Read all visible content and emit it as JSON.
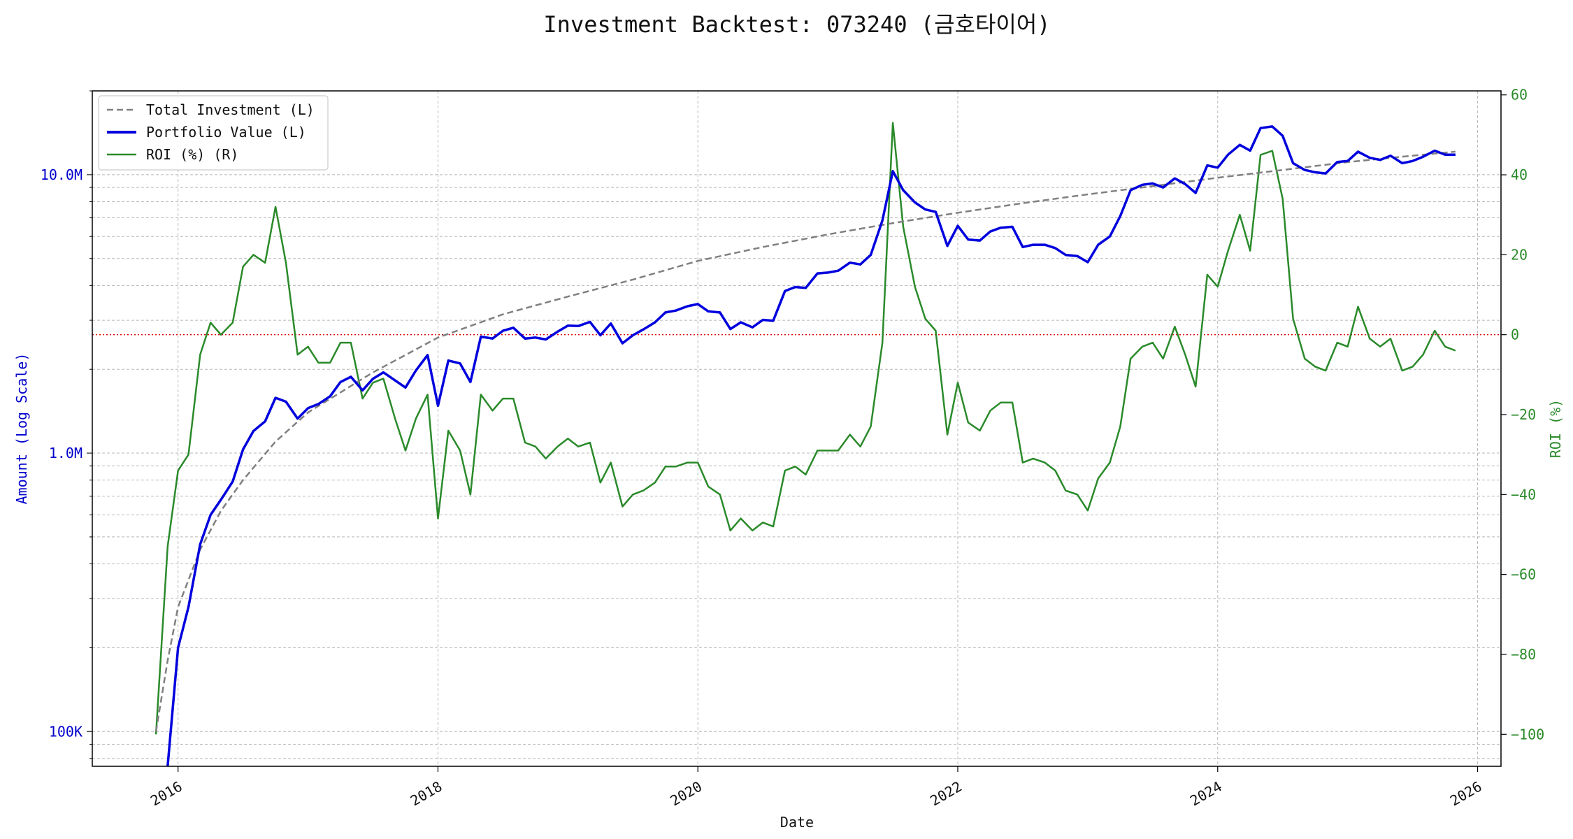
{
  "chart_data": {
    "type": "line",
    "title": "Investment Backtest: 073240 (금호타이어)",
    "xlabel": "Date",
    "ylabel_left": "Amount (Log Scale)",
    "ylabel_right": "ROI (%)",
    "left_axis": {
      "scale": "log",
      "range": [
        75000,
        20000000
      ],
      "tick_values": [
        100000,
        1000000,
        10000000
      ],
      "tick_labels": [
        "100K",
        "1.0M",
        "10.0M"
      ]
    },
    "right_axis": {
      "scale": "linear",
      "range": [
        -108,
        61
      ],
      "ticks": [
        -100,
        -80,
        -60,
        -40,
        -20,
        0,
        20,
        40,
        60
      ]
    },
    "x_axis": {
      "range": [
        2015.34,
        2026.18
      ],
      "ticks": [
        2016,
        2018,
        2020,
        2022,
        2024,
        2026
      ],
      "tick_labels": [
        "2016",
        "2018",
        "2020",
        "2022",
        "2024",
        "2026"
      ]
    },
    "grid": true,
    "legend_position": "top-left",
    "colors": {
      "total_investment": "#808080",
      "portfolio_value": "#0000dd",
      "roi": "#2a8a2a",
      "zero_line": "#dd0000",
      "left_axis_text": "#0000cc",
      "right_axis_text": "#2a8a2a"
    },
    "series": [
      {
        "name": "Total Investment (L)",
        "axis": "left",
        "style": "dashed",
        "x": [
          2015.83,
          2015.92,
          2016.0,
          2016.17,
          2016.33,
          2016.5,
          2016.75,
          2017.0,
          2017.5,
          2018.0,
          2018.5,
          2019.0,
          2019.5,
          2020.0,
          2020.5,
          2021.0,
          2021.5,
          2022.0,
          2022.5,
          2023.0,
          2023.5,
          2024.0,
          2024.5,
          2025.0,
          2025.5,
          2025.83
        ],
        "values": [
          100000,
          180000,
          280000,
          450000,
          620000,
          800000,
          1100000,
          1400000,
          1950000,
          2600000,
          3150000,
          3650000,
          4200000,
          4900000,
          5500000,
          6100000,
          6700000,
          7300000,
          7900000,
          8500000,
          9100000,
          9750000,
          10400000,
          11100000,
          11700000,
          12100000
        ]
      },
      {
        "name": "Portfolio Value (L)",
        "axis": "left",
        "style": "solid",
        "x": [
          2015.92,
          2016.0,
          2016.08,
          2016.17,
          2016.25,
          2016.33,
          2016.42,
          2016.5,
          2016.58,
          2016.67,
          2016.75,
          2016.83,
          2016.92,
          2017.0,
          2017.08,
          2017.17,
          2017.25,
          2017.33,
          2017.42,
          2017.5,
          2017.58,
          2017.75,
          2017.83,
          2017.92,
          2018.0,
          2018.08,
          2018.17,
          2018.25,
          2018.33,
          2018.42,
          2018.5,
          2018.58,
          2018.67,
          2018.75,
          2018.83,
          2018.92,
          2019.0,
          2019.08,
          2019.17,
          2019.25,
          2019.33,
          2019.42,
          2019.5,
          2019.58,
          2019.67,
          2019.75,
          2019.83,
          2019.92,
          2020.0,
          2020.08,
          2020.17,
          2020.25,
          2020.33,
          2020.42,
          2020.5,
          2020.58,
          2020.67,
          2020.75,
          2020.83,
          2020.92,
          2021.0,
          2021.08,
          2021.17,
          2021.25,
          2021.33,
          2021.42,
          2021.5,
          2021.58,
          2021.67,
          2021.75,
          2021.83,
          2021.92,
          2022.0,
          2022.08,
          2022.17,
          2022.25,
          2022.33,
          2022.42,
          2022.5,
          2022.58,
          2022.67,
          2022.75,
          2022.83,
          2022.92,
          2023.0,
          2023.08,
          2023.17,
          2023.25,
          2023.33,
          2023.42,
          2023.5,
          2023.58,
          2023.67,
          2023.75,
          2023.83,
          2023.92,
          2024.0,
          2024.08,
          2024.17,
          2024.25,
          2024.33,
          2024.42,
          2024.5,
          2024.58,
          2024.67,
          2024.75,
          2024.83,
          2024.92,
          2025.0,
          2025.08,
          2025.17,
          2025.25,
          2025.33,
          2025.42,
          2025.5,
          2025.58,
          2025.67,
          2025.75,
          2025.83
        ],
        "values": [
          60000,
          200000,
          280000,
          470000,
          600000,
          680000,
          790000,
          1030000,
          1200000,
          1300000,
          1580000,
          1530000,
          1330000,
          1450000,
          1500000,
          1600000,
          1800000,
          1880000,
          1680000,
          1850000,
          1950000,
          1720000,
          1980000,
          2250000,
          1480000,
          2150000,
          2100000,
          1800000,
          2620000,
          2580000,
          2750000,
          2820000,
          2580000,
          2600000,
          2560000,
          2730000,
          2870000,
          2860000,
          2960000,
          2650000,
          2920000,
          2480000,
          2650000,
          2780000,
          2950000,
          3200000,
          3250000,
          3370000,
          3430000,
          3230000,
          3200000,
          2790000,
          2950000,
          2830000,
          3010000,
          2990000,
          3820000,
          3950000,
          3920000,
          4420000,
          4450000,
          4520000,
          4830000,
          4760000,
          5150000,
          6850000,
          10300000,
          8800000,
          7950000,
          7500000,
          7350000,
          5550000,
          6550000,
          5850000,
          5800000,
          6250000,
          6450000,
          6500000,
          5500000,
          5600000,
          5600000,
          5450000,
          5150000,
          5100000,
          4850000,
          5600000,
          6000000,
          7100000,
          8800000,
          9200000,
          9300000,
          9000000,
          9700000,
          9250000,
          8600000,
          10800000,
          10600000,
          11800000,
          12800000,
          12200000,
          14700000,
          14900000,
          13800000,
          11000000,
          10400000,
          10200000,
          10100000,
          11100000,
          11200000,
          12100000,
          11500000,
          11300000,
          11700000,
          11000000,
          11200000,
          11600000,
          12200000,
          11800000,
          11800000
        ]
      },
      {
        "name": "ROI (%) (R)",
        "axis": "right",
        "style": "solid",
        "x": [
          2015.83,
          2015.92,
          2016.0,
          2016.08,
          2016.17,
          2016.25,
          2016.33,
          2016.42,
          2016.5,
          2016.58,
          2016.67,
          2016.75,
          2016.83,
          2016.92,
          2017.0,
          2017.08,
          2017.17,
          2017.25,
          2017.33,
          2017.42,
          2017.5,
          2017.58,
          2017.67,
          2017.75,
          2017.83,
          2017.92,
          2018.0,
          2018.08,
          2018.17,
          2018.25,
          2018.33,
          2018.42,
          2018.5,
          2018.58,
          2018.67,
          2018.75,
          2018.83,
          2018.92,
          2019.0,
          2019.08,
          2019.17,
          2019.25,
          2019.33,
          2019.42,
          2019.5,
          2019.58,
          2019.67,
          2019.75,
          2019.83,
          2019.92,
          2020.0,
          2020.08,
          2020.17,
          2020.25,
          2020.33,
          2020.42,
          2020.5,
          2020.58,
          2020.67,
          2020.75,
          2020.83,
          2020.92,
          2021.0,
          2021.08,
          2021.17,
          2021.25,
          2021.33,
          2021.42,
          2021.5,
          2021.58,
          2021.67,
          2021.75,
          2021.83,
          2021.92,
          2022.0,
          2022.08,
          2022.17,
          2022.25,
          2022.33,
          2022.42,
          2022.5,
          2022.58,
          2022.67,
          2022.75,
          2022.83,
          2022.92,
          2023.0,
          2023.08,
          2023.17,
          2023.25,
          2023.33,
          2023.42,
          2023.5,
          2023.58,
          2023.67,
          2023.75,
          2023.83,
          2023.92,
          2024.0,
          2024.08,
          2024.17,
          2024.25,
          2024.33,
          2024.42,
          2024.5,
          2024.58,
          2024.67,
          2024.75,
          2024.83,
          2024.92,
          2025.0,
          2025.08,
          2025.17,
          2025.25,
          2025.33,
          2025.42,
          2025.5,
          2025.58,
          2025.67,
          2025.75,
          2025.83
        ],
        "values": [
          -100,
          -53,
          -34,
          -30,
          -5,
          3,
          0,
          3,
          17,
          20,
          18,
          32,
          18,
          -5,
          -3,
          -7,
          -7,
          -2,
          -2,
          -16,
          -12,
          -11,
          -21,
          -29,
          -21,
          -15,
          -46,
          -24,
          -29,
          -40,
          -15,
          -19,
          -16,
          -16,
          -27,
          -28,
          -31,
          -28,
          -26,
          -28,
          -27,
          -37,
          -32,
          -43,
          -40,
          -39,
          -37,
          -33,
          -33,
          -32,
          -32,
          -38,
          -40,
          -49,
          -46,
          -49,
          -47,
          -48,
          -34,
          -33,
          -35,
          -29,
          -29,
          -29,
          -25,
          -28,
          -23,
          -2,
          53,
          27,
          12,
          4,
          1,
          -25,
          -12,
          -22,
          -24,
          -19,
          -17,
          -17,
          -32,
          -31,
          -32,
          -34,
          -39,
          -40,
          -44,
          -36,
          -32,
          -23,
          -6,
          -3,
          -2,
          -6,
          2,
          -5,
          -13,
          15,
          12,
          21,
          30,
          21,
          45,
          46,
          34,
          4,
          -6,
          -8,
          -9,
          -2,
          -3,
          7,
          -1,
          -3,
          -1,
          -9,
          -8,
          -5,
          1,
          -3,
          -4
        ]
      }
    ]
  }
}
